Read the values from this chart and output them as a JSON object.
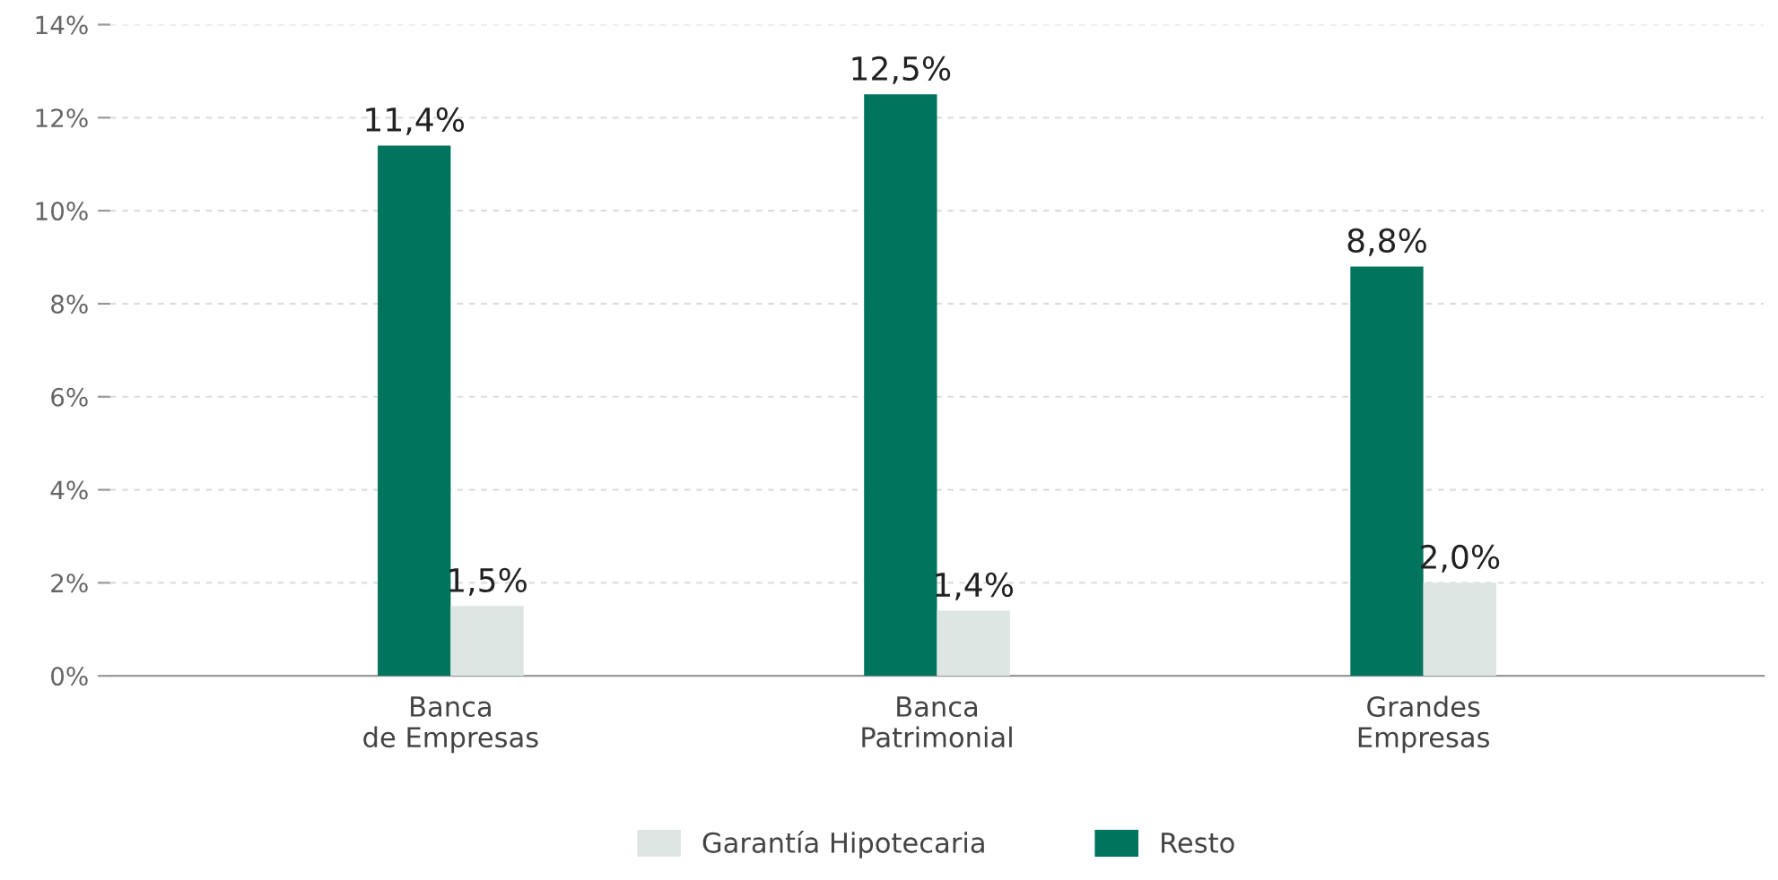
{
  "chart_data": {
    "type": "bar",
    "categories": [
      "Banca\nde Empresas",
      "Banca\nPatrimonial",
      "Grandes\nEmpresas"
    ],
    "series": [
      {
        "name": "Resto",
        "color": "#00745c",
        "values": [
          11.4,
          12.5,
          8.8
        ],
        "value_labels": [
          "11,4%",
          "12,5%",
          "8,8%"
        ]
      },
      {
        "name": "Garantía Hipotecaria",
        "color": "#dde6e2",
        "values": [
          1.5,
          1.4,
          2.0
        ],
        "value_labels": [
          "1,5%",
          "1,4%",
          "2,0%"
        ]
      }
    ],
    "ylim": [
      0,
      14
    ],
    "yticks": [
      {
        "value": 0,
        "label": "0%"
      },
      {
        "value": 2,
        "label": "2%"
      },
      {
        "value": 4,
        "label": "4%"
      },
      {
        "value": 6,
        "label": "6%"
      },
      {
        "value": 8,
        "label": "8%"
      },
      {
        "value": 10,
        "label": "10%"
      },
      {
        "value": 12,
        "label": "12%"
      },
      {
        "value": 14,
        "label": "14%"
      }
    ],
    "grid": "y",
    "legend": "bottom"
  }
}
